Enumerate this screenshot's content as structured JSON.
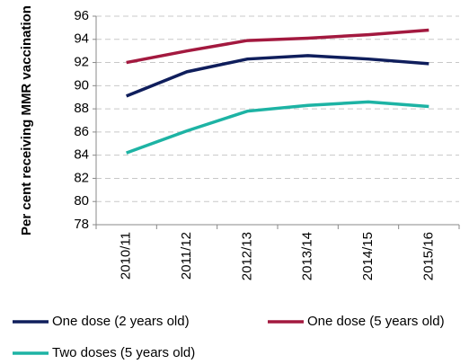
{
  "chart_data": {
    "type": "line",
    "y_label": "Per cent receiving MMR vaccination",
    "categories": [
      "2010/11",
      "2011/12",
      "2012/13",
      "2013/14",
      "2014/15",
      "2015/16"
    ],
    "series": [
      {
        "name": "One dose (2 years old)",
        "color": "#0f1e5c",
        "values": [
          89.1,
          91.2,
          92.3,
          92.6,
          92.3,
          91.9
        ]
      },
      {
        "name": "One dose (5 years old)",
        "color": "#a3193f",
        "values": [
          92.0,
          93.0,
          93.9,
          94.1,
          94.4,
          94.8
        ]
      },
      {
        "name": "Two doses (5 years old)",
        "color": "#1db3a4",
        "values": [
          84.2,
          86.1,
          87.8,
          88.3,
          88.6,
          88.2
        ]
      }
    ],
    "ylim": [
      78,
      96
    ],
    "yticks": [
      78,
      80,
      82,
      84,
      86,
      88,
      90,
      92,
      94,
      96
    ],
    "grid": true
  }
}
